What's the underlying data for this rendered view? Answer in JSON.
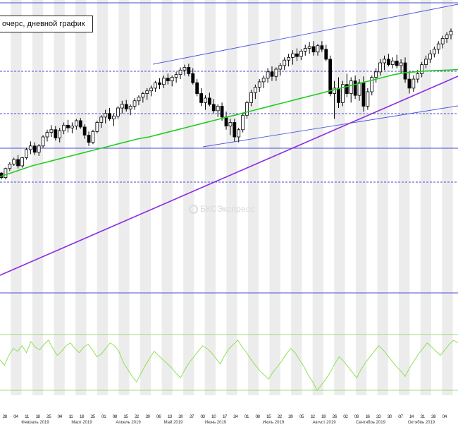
{
  "title": "очерс, дневной график",
  "watermark": "БКСЭкспресс",
  "colors": {
    "channel": "#4a55e0",
    "trendline": "#8a2be2",
    "ma": "#22cc22",
    "oscillator": "#88dd44",
    "oscillator_levels": "#99dd77",
    "hline": "#4b4bd6",
    "candle": "#000000",
    "shading": "#ececec"
  },
  "chart_data": {
    "type": "candlestick",
    "title": "очерс, дневной график",
    "x_month_labels": [
      "Февраль 2019",
      "Март 2019",
      "Апрель 2019",
      "Май 2019",
      "Июнь 2019",
      "Июль 2019",
      "Август 2019",
      "Сентябрь 2019",
      "Октябрь 2019"
    ],
    "x_day_labels": [
      "28",
      "04",
      "11",
      "18",
      "25",
      "04",
      "11",
      "18",
      "25",
      "01",
      "08",
      "15",
      "22",
      "29",
      "06",
      "13",
      "20",
      "27",
      "03",
      "10",
      "17",
      "24",
      "01",
      "08",
      "15",
      "22",
      "29",
      "05",
      "12",
      "19",
      "26",
      "02",
      "09",
      "16",
      "23",
      "30",
      "07",
      "14",
      "21",
      "28",
      "04"
    ],
    "price_series": [
      {
        "o": 10,
        "h": 11,
        "l": 3,
        "c": 5
      },
      {
        "o": 5,
        "h": 16,
        "l": 3,
        "c": 15
      },
      {
        "o": 15,
        "h": 22,
        "l": 12,
        "c": 20
      },
      {
        "o": 20,
        "h": 27,
        "l": 18,
        "c": 25
      },
      {
        "o": 25,
        "h": 30,
        "l": 15,
        "c": 18
      },
      {
        "o": 18,
        "h": 28,
        "l": 16,
        "c": 27
      },
      {
        "o": 27,
        "h": 38,
        "l": 25,
        "c": 36
      },
      {
        "o": 36,
        "h": 45,
        "l": 31,
        "c": 40
      },
      {
        "o": 40,
        "h": 44,
        "l": 30,
        "c": 33
      },
      {
        "o": 33,
        "h": 42,
        "l": 29,
        "c": 40
      },
      {
        "o": 40,
        "h": 52,
        "l": 38,
        "c": 50
      },
      {
        "o": 50,
        "h": 58,
        "l": 45,
        "c": 55
      },
      {
        "o": 55,
        "h": 63,
        "l": 50,
        "c": 58
      },
      {
        "o": 58,
        "h": 62,
        "l": 46,
        "c": 49
      },
      {
        "o": 49,
        "h": 60,
        "l": 44,
        "c": 57
      },
      {
        "o": 57,
        "h": 66,
        "l": 53,
        "c": 63
      },
      {
        "o": 63,
        "h": 69,
        "l": 55,
        "c": 60
      },
      {
        "o": 60,
        "h": 66,
        "l": 54,
        "c": 62
      },
      {
        "o": 62,
        "h": 70,
        "l": 58,
        "c": 68
      },
      {
        "o": 68,
        "h": 71,
        "l": 59,
        "c": 61
      },
      {
        "o": 61,
        "h": 64,
        "l": 48,
        "c": 52
      },
      {
        "o": 52,
        "h": 56,
        "l": 40,
        "c": 44
      },
      {
        "o": 44,
        "h": 58,
        "l": 42,
        "c": 56
      },
      {
        "o": 56,
        "h": 68,
        "l": 54,
        "c": 66
      },
      {
        "o": 66,
        "h": 74,
        "l": 60,
        "c": 72
      },
      {
        "o": 72,
        "h": 80,
        "l": 65,
        "c": 76
      },
      {
        "o": 76,
        "h": 82,
        "l": 68,
        "c": 70
      },
      {
        "o": 70,
        "h": 76,
        "l": 62,
        "c": 73
      },
      {
        "o": 73,
        "h": 84,
        "l": 70,
        "c": 82
      },
      {
        "o": 82,
        "h": 90,
        "l": 76,
        "c": 86
      },
      {
        "o": 86,
        "h": 91,
        "l": 78,
        "c": 81
      },
      {
        "o": 81,
        "h": 86,
        "l": 74,
        "c": 84
      },
      {
        "o": 84,
        "h": 93,
        "l": 80,
        "c": 90
      },
      {
        "o": 90,
        "h": 96,
        "l": 85,
        "c": 94
      },
      {
        "o": 94,
        "h": 100,
        "l": 88,
        "c": 98
      },
      {
        "o": 98,
        "h": 104,
        "l": 91,
        "c": 101
      },
      {
        "o": 101,
        "h": 107,
        "l": 95,
        "c": 104
      },
      {
        "o": 104,
        "h": 112,
        "l": 100,
        "c": 110
      },
      {
        "o": 110,
        "h": 115,
        "l": 103,
        "c": 108
      },
      {
        "o": 108,
        "h": 118,
        "l": 104,
        "c": 115
      },
      {
        "o": 115,
        "h": 120,
        "l": 108,
        "c": 112
      },
      {
        "o": 112,
        "h": 118,
        "l": 106,
        "c": 116
      },
      {
        "o": 116,
        "h": 122,
        "l": 110,
        "c": 119
      },
      {
        "o": 119,
        "h": 127,
        "l": 114,
        "c": 124
      },
      {
        "o": 124,
        "h": 130,
        "l": 118,
        "c": 127
      },
      {
        "o": 127,
        "h": 131,
        "l": 117,
        "c": 120
      },
      {
        "o": 120,
        "h": 126,
        "l": 108,
        "c": 110
      },
      {
        "o": 110,
        "h": 114,
        "l": 95,
        "c": 98
      },
      {
        "o": 98,
        "h": 104,
        "l": 84,
        "c": 88
      },
      {
        "o": 88,
        "h": 96,
        "l": 80,
        "c": 93
      },
      {
        "o": 93,
        "h": 99,
        "l": 84,
        "c": 86
      },
      {
        "o": 86,
        "h": 92,
        "l": 76,
        "c": 79
      },
      {
        "o": 79,
        "h": 86,
        "l": 72,
        "c": 84
      },
      {
        "o": 84,
        "h": 88,
        "l": 68,
        "c": 72
      },
      {
        "o": 72,
        "h": 78,
        "l": 58,
        "c": 62
      },
      {
        "o": 62,
        "h": 70,
        "l": 52,
        "c": 66
      },
      {
        "o": 66,
        "h": 70,
        "l": 45,
        "c": 50
      },
      {
        "o": 50,
        "h": 60,
        "l": 44,
        "c": 58
      },
      {
        "o": 58,
        "h": 76,
        "l": 55,
        "c": 74
      },
      {
        "o": 74,
        "h": 90,
        "l": 70,
        "c": 88
      },
      {
        "o": 88,
        "h": 102,
        "l": 84,
        "c": 99
      },
      {
        "o": 99,
        "h": 108,
        "l": 92,
        "c": 105
      },
      {
        "o": 105,
        "h": 114,
        "l": 100,
        "c": 111
      },
      {
        "o": 111,
        "h": 118,
        "l": 104,
        "c": 115
      },
      {
        "o": 115,
        "h": 126,
        "l": 110,
        "c": 122
      },
      {
        "o": 122,
        "h": 128,
        "l": 112,
        "c": 117
      },
      {
        "o": 117,
        "h": 127,
        "l": 112,
        "c": 125
      },
      {
        "o": 125,
        "h": 132,
        "l": 118,
        "c": 129
      },
      {
        "o": 129,
        "h": 138,
        "l": 124,
        "c": 135
      },
      {
        "o": 135,
        "h": 142,
        "l": 128,
        "c": 138
      },
      {
        "o": 138,
        "h": 146,
        "l": 130,
        "c": 142
      },
      {
        "o": 142,
        "h": 148,
        "l": 134,
        "c": 139
      },
      {
        "o": 139,
        "h": 147,
        "l": 135,
        "c": 145
      },
      {
        "o": 145,
        "h": 152,
        "l": 140,
        "c": 148
      },
      {
        "o": 148,
        "h": 155,
        "l": 142,
        "c": 150
      },
      {
        "o": 150,
        "h": 156,
        "l": 140,
        "c": 144
      },
      {
        "o": 144,
        "h": 153,
        "l": 140,
        "c": 151
      },
      {
        "o": 151,
        "h": 156,
        "l": 144,
        "c": 147
      },
      {
        "o": 147,
        "h": 152,
        "l": 134,
        "c": 136
      },
      {
        "o": 136,
        "h": 140,
        "l": 95,
        "c": 98
      },
      {
        "o": 98,
        "h": 112,
        "l": 70,
        "c": 104
      },
      {
        "o": 104,
        "h": 116,
        "l": 82,
        "c": 88
      },
      {
        "o": 88,
        "h": 112,
        "l": 84,
        "c": 108
      },
      {
        "o": 108,
        "h": 120,
        "l": 94,
        "c": 98
      },
      {
        "o": 98,
        "h": 116,
        "l": 88,
        "c": 112
      },
      {
        "o": 112,
        "h": 118,
        "l": 92,
        "c": 96
      },
      {
        "o": 96,
        "h": 114,
        "l": 90,
        "c": 110
      },
      {
        "o": 110,
        "h": 117,
        "l": 78,
        "c": 84
      },
      {
        "o": 84,
        "h": 104,
        "l": 80,
        "c": 100
      },
      {
        "o": 100,
        "h": 118,
        "l": 96,
        "c": 116
      },
      {
        "o": 116,
        "h": 126,
        "l": 110,
        "c": 122
      },
      {
        "o": 122,
        "h": 136,
        "l": 118,
        "c": 132
      },
      {
        "o": 132,
        "h": 140,
        "l": 124,
        "c": 136
      },
      {
        "o": 136,
        "h": 142,
        "l": 128,
        "c": 130
      },
      {
        "o": 130,
        "h": 138,
        "l": 126,
        "c": 134
      },
      {
        "o": 134,
        "h": 141,
        "l": 126,
        "c": 129
      },
      {
        "o": 129,
        "h": 136,
        "l": 120,
        "c": 132
      },
      {
        "o": 132,
        "h": 138,
        "l": 110,
        "c": 114
      },
      {
        "o": 114,
        "h": 122,
        "l": 98,
        "c": 104
      },
      {
        "o": 104,
        "h": 118,
        "l": 100,
        "c": 114
      },
      {
        "o": 114,
        "h": 124,
        "l": 110,
        "c": 120
      },
      {
        "o": 120,
        "h": 133,
        "l": 116,
        "c": 130
      },
      {
        "o": 130,
        "h": 140,
        "l": 126,
        "c": 136
      },
      {
        "o": 136,
        "h": 146,
        "l": 132,
        "c": 142
      },
      {
        "o": 142,
        "h": 150,
        "l": 138,
        "c": 147
      },
      {
        "o": 147,
        "h": 156,
        "l": 142,
        "c": 153
      },
      {
        "o": 153,
        "h": 162,
        "l": 148,
        "c": 159
      },
      {
        "o": 159,
        "h": 166,
        "l": 154,
        "c": 163
      },
      {
        "o": 163,
        "h": 170,
        "l": 158,
        "c": 167
      }
    ],
    "moving_average": [
      6,
      10,
      14,
      18,
      21,
      24,
      27,
      30,
      33,
      36,
      39,
      42,
      45,
      48,
      50,
      53,
      56,
      59,
      62,
      65,
      68,
      71,
      74,
      77,
      80,
      83,
      86,
      89,
      92,
      95,
      98,
      101,
      104,
      107,
      110,
      113,
      116,
      119,
      121,
      122,
      123,
      123.5,
      124,
      124.5
    ],
    "oscillator_series": [
      52,
      48,
      55,
      60,
      58,
      62,
      57,
      65,
      61,
      59,
      63,
      66,
      60,
      55,
      58,
      62,
      64,
      60,
      57,
      61,
      63,
      59,
      54,
      56,
      60,
      64,
      62,
      58,
      50,
      45,
      40,
      36,
      42,
      48,
      53,
      58,
      55,
      52,
      49,
      46,
      42,
      39,
      45,
      50,
      54,
      58,
      62,
      60,
      57,
      53,
      49,
      55,
      60,
      63,
      66,
      61,
      57,
      52,
      48,
      44,
      41,
      38,
      43,
      47,
      51,
      56,
      60,
      57,
      52,
      47,
      41,
      36,
      30,
      34,
      38,
      43,
      49,
      54,
      51,
      47,
      43,
      39,
      45,
      50,
      54,
      58,
      62,
      59,
      55,
      51,
      47,
      44,
      40,
      46,
      51,
      56,
      60,
      64,
      61,
      58,
      55,
      59,
      63,
      66,
      64
    ],
    "oscillator_levels": [
      70,
      30
    ]
  }
}
